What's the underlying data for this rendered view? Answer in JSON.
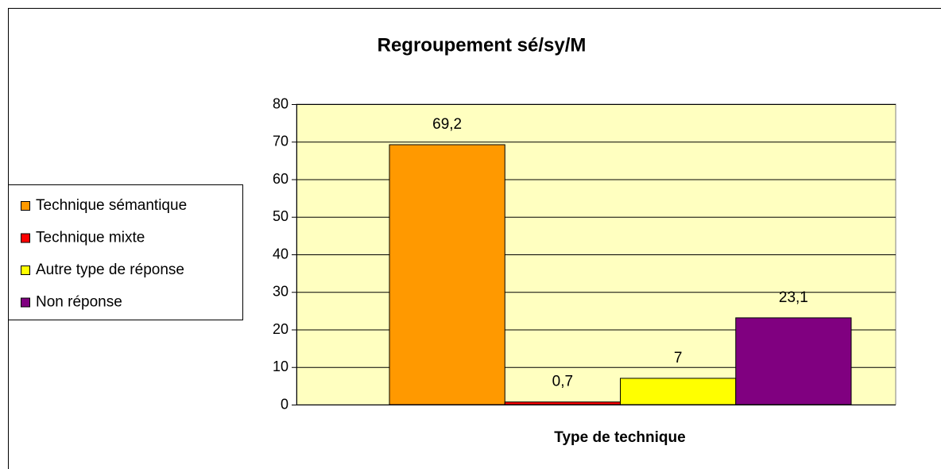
{
  "chart_data": {
    "type": "bar",
    "title": "Regroupement sé/sy/M",
    "x_label": "Type de technique",
    "categories": [
      null
    ],
    "series": [
      {
        "name": "Technique sémantique",
        "color": "#ff9900",
        "values": [
          69.2
        ],
        "value_labels": [
          "69,2"
        ]
      },
      {
        "name": "Technique mixte",
        "color": "#ff0000",
        "values": [
          0.7
        ],
        "value_labels": [
          "0,7"
        ]
      },
      {
        "name": "Autre type de réponse",
        "color": "#ffff00",
        "values": [
          7
        ],
        "value_labels": [
          "7"
        ]
      },
      {
        "name": "Non réponse",
        "color": "#800080",
        "values": [
          23.1
        ],
        "value_labels": [
          "23,1"
        ]
      }
    ],
    "ylim": [
      0,
      80
    ],
    "yticks": [
      0,
      10,
      20,
      30,
      40,
      50,
      60,
      70,
      80
    ],
    "grid": true,
    "plot_background": "#ffffc0",
    "legend": "left"
  }
}
